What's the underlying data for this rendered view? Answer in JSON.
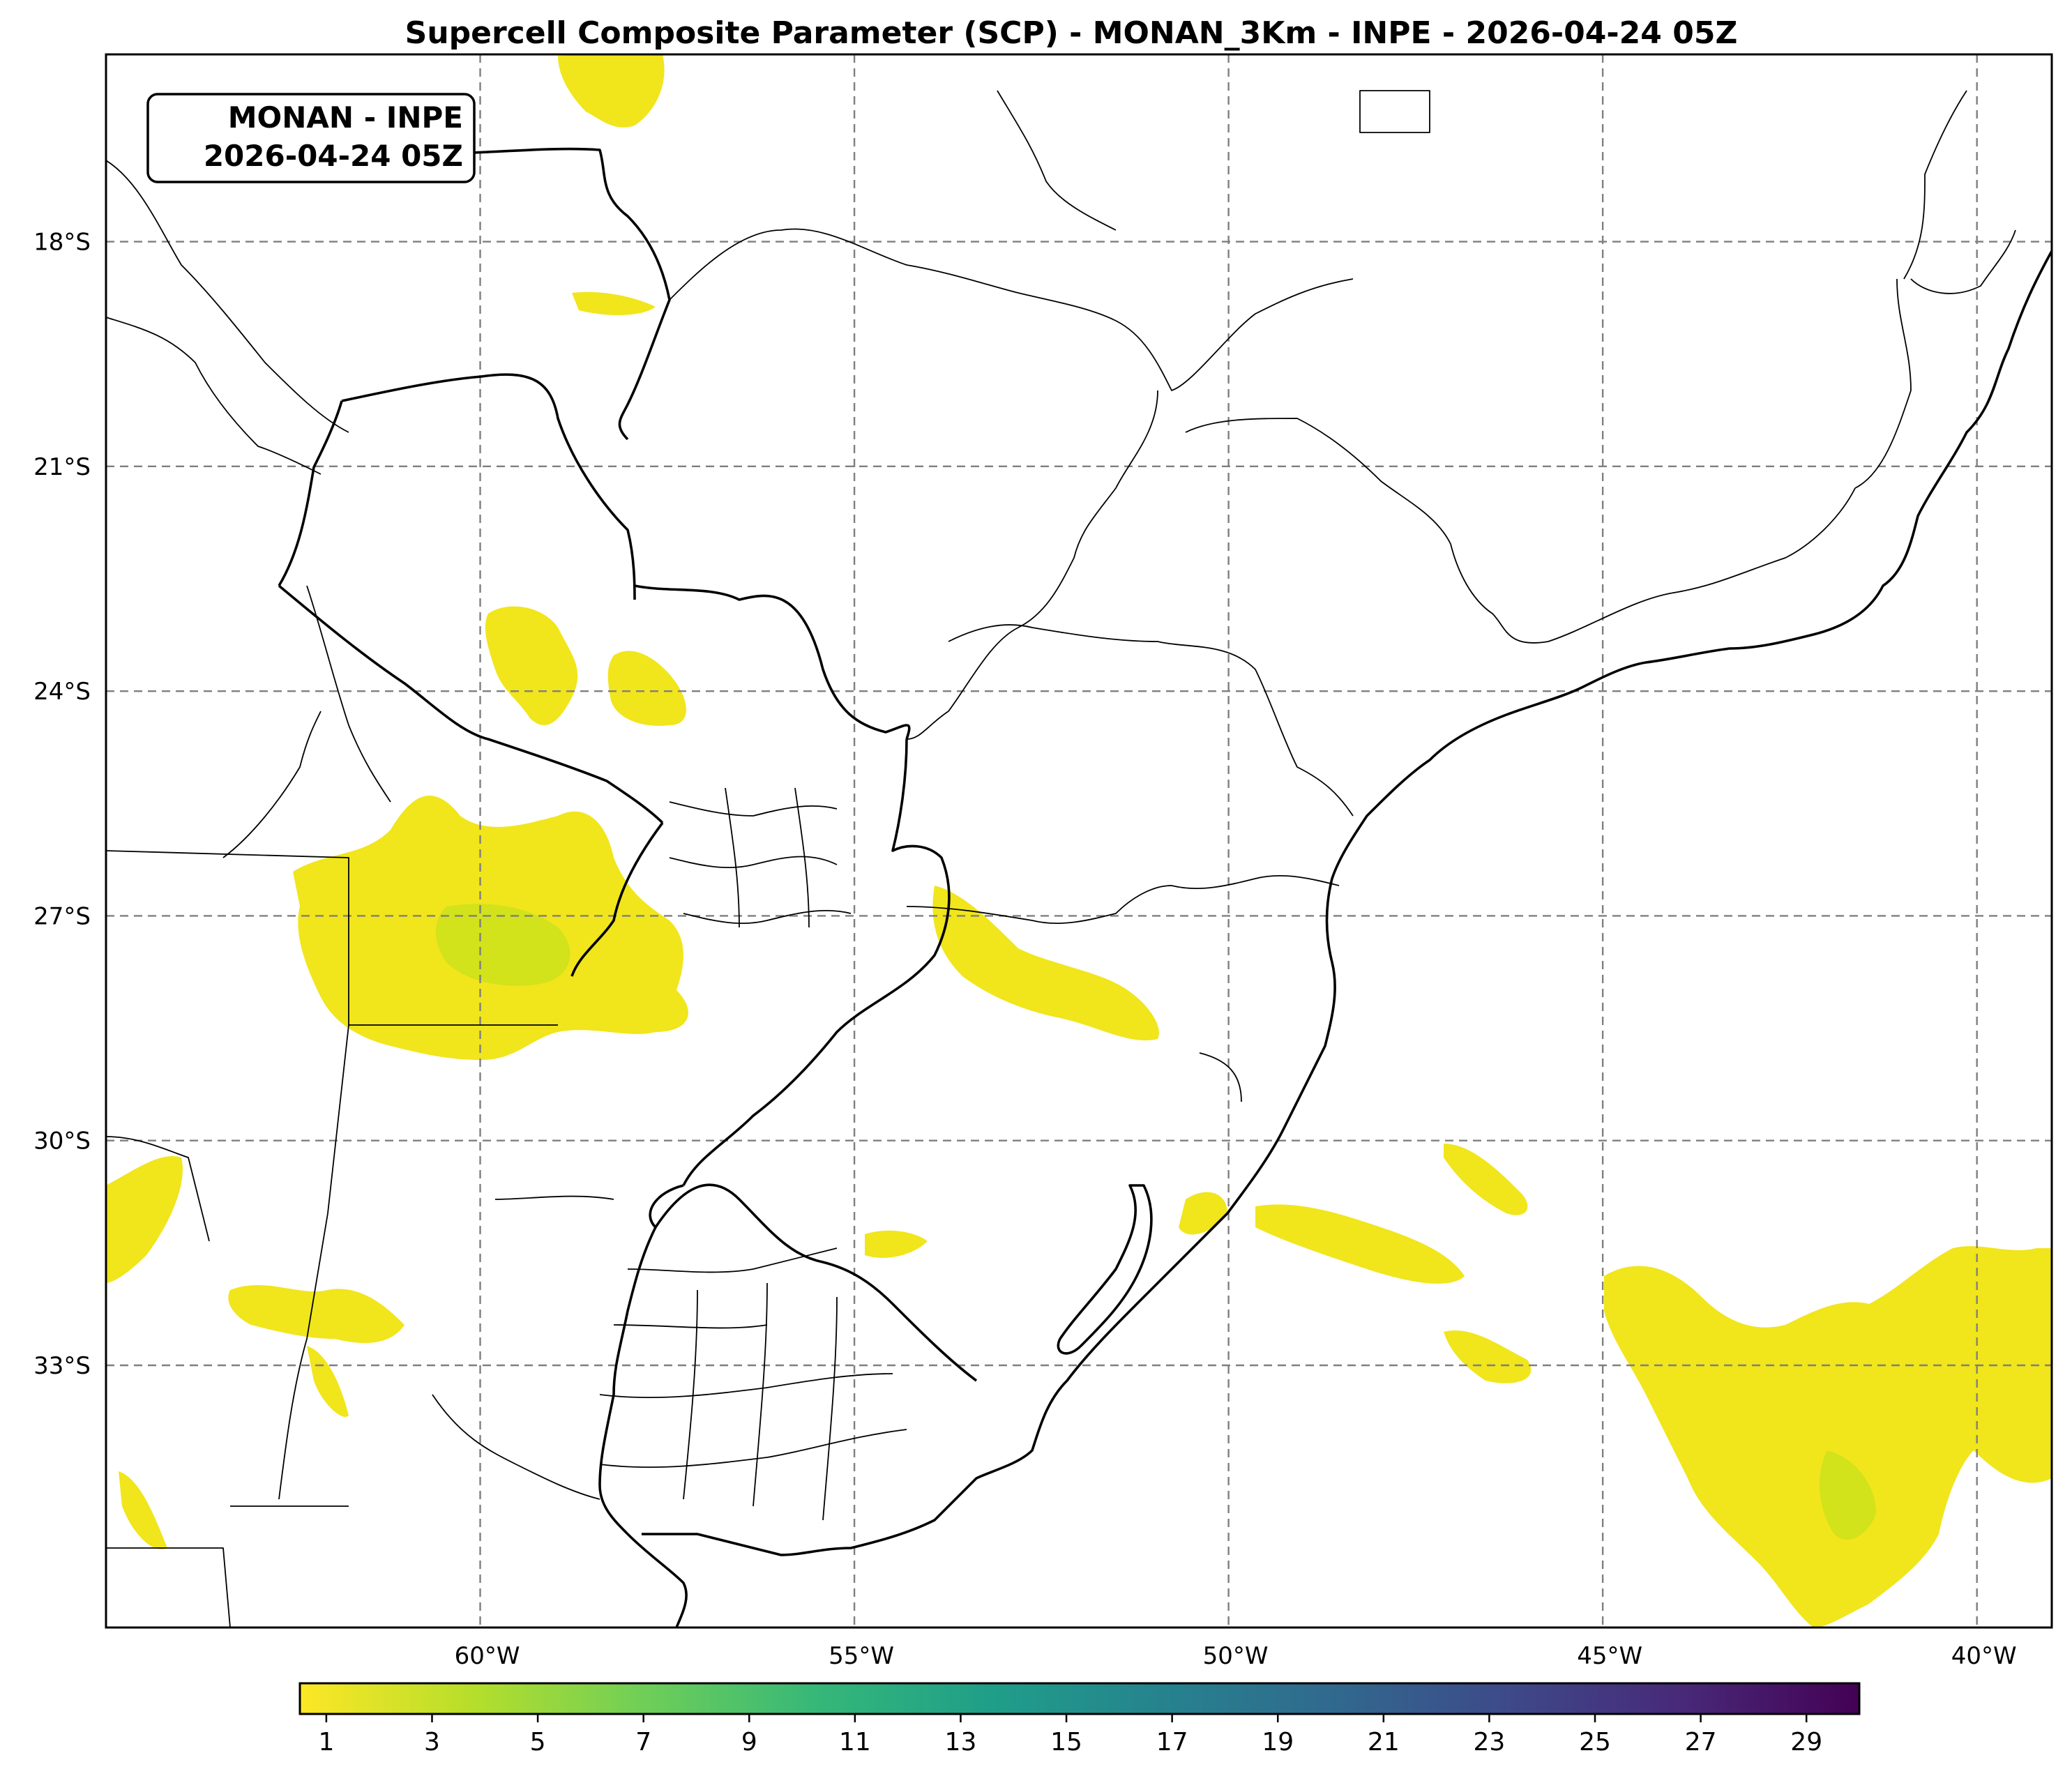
{
  "title": "Supercell Composite Parameter (SCP) - MONAN_3Km - INPE - 2026-04-24 05Z",
  "info_box": {
    "line1": "MONAN - INPE",
    "line2": "2026-04-24 05Z"
  },
  "map": {
    "extent": {
      "lon_min": -65.0,
      "lon_max": -39.0,
      "lat_min": -36.5,
      "lat_max": -15.5
    },
    "lat_ticks": [
      {
        "value": -18,
        "label": "18°S"
      },
      {
        "value": -21,
        "label": "21°S"
      },
      {
        "value": -24,
        "label": "24°S"
      },
      {
        "value": -27,
        "label": "27°S"
      },
      {
        "value": -30,
        "label": "30°S"
      },
      {
        "value": -33,
        "label": "33°S"
      }
    ],
    "lon_ticks": [
      {
        "value": -60,
        "label": "60°W"
      },
      {
        "value": -55,
        "label": "55°W"
      },
      {
        "value": -50,
        "label": "50°W"
      },
      {
        "value": -45,
        "label": "45°W"
      },
      {
        "value": -40,
        "label": "40°W"
      }
    ],
    "gridlines": true,
    "field_color_low": "#fde725",
    "field_color_mid": "#d2e21b"
  },
  "colorbar": {
    "colormap": "viridis_r",
    "vmin": 0.5,
    "vmax": 30,
    "ticks": [
      "1",
      "3",
      "5",
      "7",
      "9",
      "11",
      "13",
      "15",
      "17",
      "19",
      "21",
      "23",
      "25",
      "27",
      "29"
    ],
    "tick_values": [
      1,
      3,
      5,
      7,
      9,
      11,
      13,
      15,
      17,
      19,
      21,
      23,
      25,
      27,
      29
    ],
    "stops": [
      "#fde725",
      "#b5de2b",
      "#6ece58",
      "#35b779",
      "#1f9e89",
      "#26828e",
      "#31688e",
      "#3e4989",
      "#482878",
      "#440154"
    ]
  }
}
